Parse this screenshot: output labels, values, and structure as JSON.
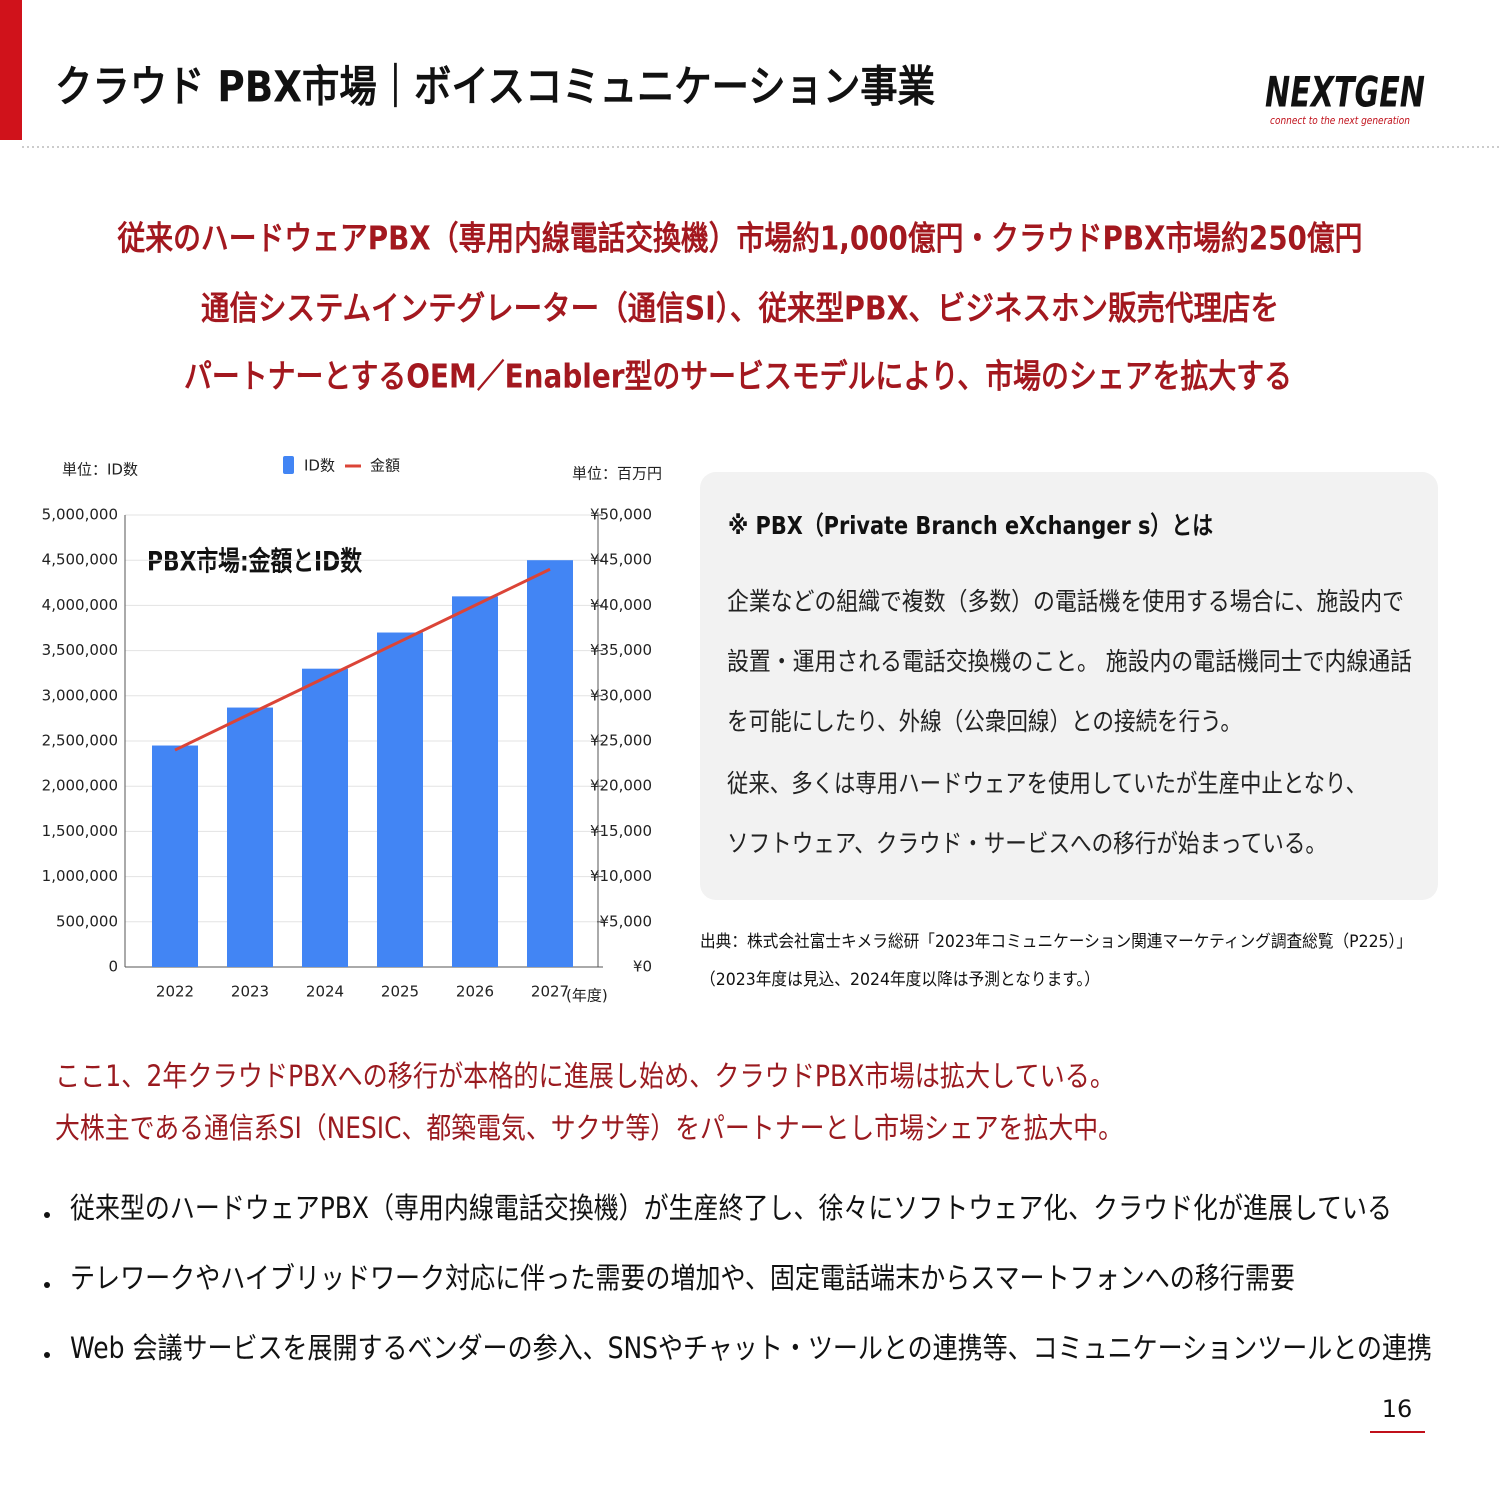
{
  "header": {
    "title": "クラウド PBX市場｜ボイスコミュニケーション事業",
    "logo": "NEXTGEN",
    "logo_tagline": "connect to the next generation"
  },
  "headline": [
    "従来のハードウェアPBX（専用内線電話交換機）市場約1,000億円・クラウドPBX市場約250億円",
    "通信システムインテグレーター（通信SI）、従来型PBX、ビジネスホン販売代理店を",
    "パートナーとするOEM／Enabler型のサービスモデルにより、市場のシェアを拡大する"
  ],
  "chart_data": {
    "type": "bar",
    "title": "PBX市場:金額とID数",
    "y_unit": "単位：ID数",
    "y2_unit": "単位：百万円",
    "x_unit": "(年度)",
    "categories": [
      "2022",
      "2023",
      "2024",
      "2025",
      "2026",
      "2027"
    ],
    "series": [
      {
        "name": "ID数",
        "color": "#4285f4",
        "type": "bar",
        "values": [
          2450000,
          2870000,
          3300000,
          3700000,
          4100000,
          4500000
        ]
      },
      {
        "name": "金額",
        "color": "#db4437",
        "type": "line",
        "axis": "y2",
        "values": [
          24000,
          28000,
          32000,
          36000,
          40000,
          44000
        ]
      }
    ],
    "ylim": [
      0,
      5000000
    ],
    "yticks": [
      0,
      {
        "value": 500000,
        "label": "500,000"
      },
      {
        "value": 1000000,
        "label": "1,000,000"
      },
      {
        "value": 1500000,
        "label": "1,500,000"
      },
      {
        "value": 2000000,
        "label": "2,000,000"
      },
      {
        "value": 2500000,
        "label": "2,500,000"
      },
      {
        "value": 3000000,
        "label": "3,000,000"
      },
      {
        "value": 3500000,
        "label": "3,500,000"
      },
      {
        "value": 4000000,
        "label": "4,000,000"
      },
      {
        "value": 4500000,
        "label": "4,500,000"
      },
      {
        "value": 5000000,
        "label": "5,000,000"
      }
    ],
    "y2lim": [
      0,
      50000
    ],
    "y2ticks": [
      {
        "value": 0,
        "label": "¥0"
      },
      {
        "value": 5000,
        "label": "¥5,000"
      },
      {
        "value": 10000,
        "label": "¥10,000"
      },
      {
        "value": 15000,
        "label": "¥15,000"
      },
      {
        "value": 20000,
        "label": "¥20,000"
      },
      {
        "value": 25000,
        "label": "¥25,000"
      },
      {
        "value": 30000,
        "label": "¥30,000"
      },
      {
        "value": 35000,
        "label": "¥35,000"
      },
      {
        "value": 40000,
        "label": "¥40,000"
      },
      {
        "value": 45000,
        "label": "¥45,000"
      },
      {
        "value": 50000,
        "label": "¥50,000"
      }
    ],
    "grid": true,
    "legend": "top"
  },
  "definition": {
    "title": "※ PBX（Private Branch eXchanger s）とは",
    "lines": [
      "企業などの組織で複数（多数）の電話機を使用する場合に、施設内で",
      "設置・運用される電話交換機のこと。 施設内の電話機同士で内線通話",
      "を可能にしたり、外線（公衆回線）との接続を行う。",
      "従来、多くは専用ハードウェアを使用していたが生産中止となり、",
      "ソフトウェア、クラウド・サービスへの移行が始まっている。"
    ]
  },
  "source": [
    "出典：株式会社富士キメラ総研「2023年コミュニケーション関連マーケティング調査総覧（P225）」",
    "（2023年度は見込、2024年度以降は予測となります。）"
  ],
  "notes": [
    "ここ1、2年クラウドPBXへの移行が本格的に進展し始め、クラウドPBX市場は拡大している。",
    "大株主である通信系SI（NESIC、都築電気、サクサ等）をパートナーとし市場シェアを拡大中。"
  ],
  "bullets": [
    "従来型のハードウェアPBX（専用内線電話交換機）が生産終了し、徐々にソフトウェア化、クラウド化が進展している",
    "テレワークやハイブリッドワーク対応に伴った需要の増加や、固定電話端末からスマートフォンへの移行需要",
    "Web 会議サービスを展開するベンダーの参入、SNSやチャット・ツールとの連携等、コミュニケーションツールとの連携"
  ],
  "page_number": "16"
}
